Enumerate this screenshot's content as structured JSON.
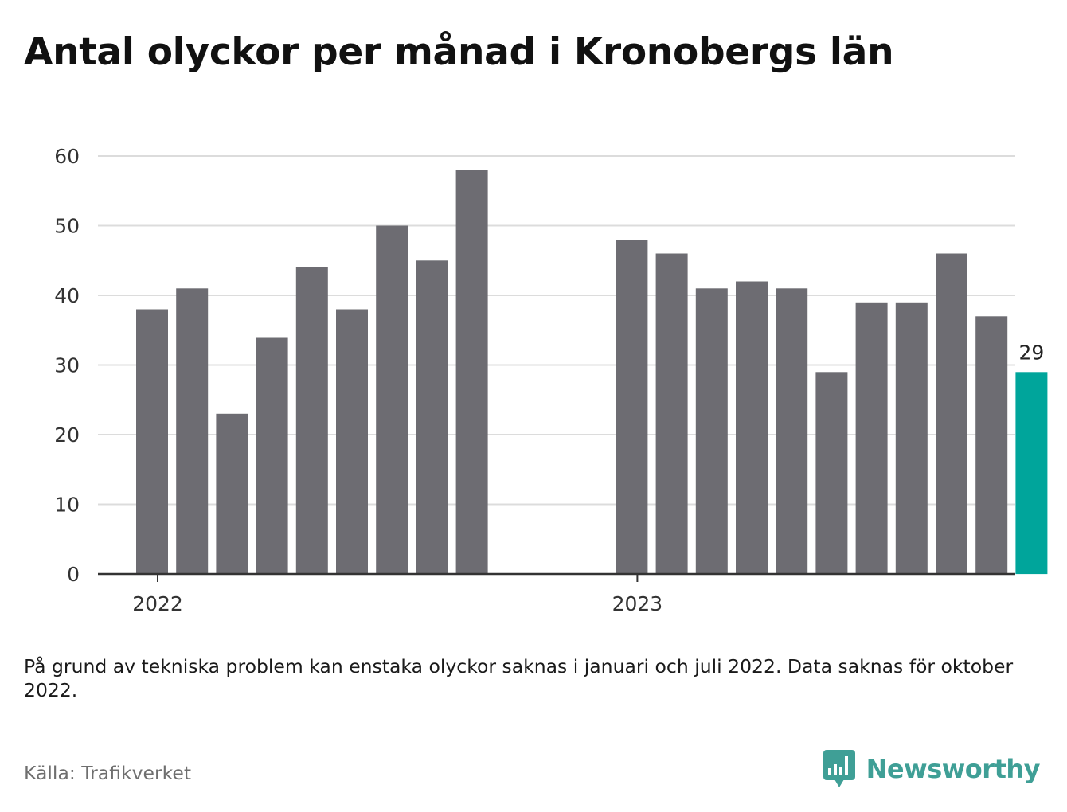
{
  "title": "Antal olyckor per månad i Kronobergs län",
  "note": "På grund av tekniska problem kan enstaka olyckor saknas i januari och juli 2022. Data saknas för oktober 2022.",
  "source": "Källa: Trafikverket",
  "logo": {
    "text": "Newsworthy",
    "icon": "bar-chart-speech-bubble-icon"
  },
  "colors": {
    "bar": "#6d6c72",
    "highlight": "#00a59b",
    "grid": "#dcdcdc",
    "axis": "#333333",
    "brand": "#3f9f96"
  },
  "chart_data": {
    "type": "bar",
    "title": "Antal olyckor per månad i Kronobergs län",
    "xlabel": "",
    "ylabel": "",
    "ylim": [
      0,
      60
    ],
    "yticks": [
      0,
      10,
      20,
      30,
      40,
      50,
      60
    ],
    "xtick_labels": [
      {
        "label": "2022",
        "category": "2022-01"
      },
      {
        "label": "2023",
        "category": "2023-01"
      }
    ],
    "grid": true,
    "categories": [
      "2022-01",
      "2022-02",
      "2022-03",
      "2022-04",
      "2022-05",
      "2022-06",
      "2022-07",
      "2022-08",
      "2022-09",
      "2022-10",
      "2022-11",
      "2022-12",
      "2023-01",
      "2023-02",
      "2023-03",
      "2023-04",
      "2023-05",
      "2023-06",
      "2023-07",
      "2023-08",
      "2023-09",
      "2023-10",
      "2023-11"
    ],
    "values": [
      38,
      41,
      23,
      34,
      44,
      38,
      50,
      45,
      58,
      null,
      null,
      null,
      48,
      46,
      41,
      42,
      41,
      29,
      39,
      39,
      46,
      37,
      29
    ],
    "highlight": {
      "category": "2023-11",
      "value": 29,
      "label": "29"
    }
  }
}
